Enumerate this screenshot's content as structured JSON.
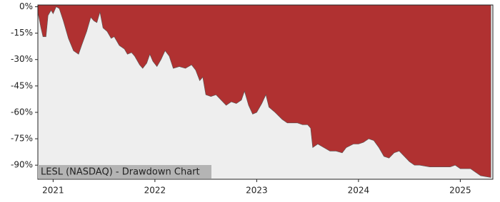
{
  "chart_data": {
    "type": "area",
    "title": "LESL (NASDAQ) - Drawdown Chart",
    "color": "#b03131",
    "x": [
      2020.85,
      2020.88,
      2020.9,
      2020.93,
      2020.95,
      2020.98,
      2021.0,
      2021.03,
      2021.06,
      2021.1,
      2021.15,
      2021.2,
      2021.25,
      2021.28,
      2021.33,
      2021.37,
      2021.4,
      2021.43,
      2021.46,
      2021.49,
      2021.53,
      2021.57,
      2021.6,
      2021.65,
      2021.7,
      2021.73,
      2021.77,
      2021.8,
      2021.85,
      2021.88,
      2021.92,
      2021.95,
      2021.98,
      2022.02,
      2022.06,
      2022.1,
      2022.14,
      2022.18,
      2022.24,
      2022.3,
      2022.36,
      2022.4,
      2022.44,
      2022.47,
      2022.5,
      2022.55,
      2022.6,
      2022.65,
      2022.7,
      2022.75,
      2022.8,
      2022.85,
      2022.88,
      2022.92,
      2022.96,
      2023.0,
      2023.05,
      2023.09,
      2023.12,
      2023.18,
      2023.25,
      2023.3,
      2023.4,
      2023.45,
      2023.5,
      2023.53,
      2023.55,
      2023.6,
      2023.66,
      2023.72,
      2023.78,
      2023.84,
      2023.88,
      2023.95,
      2024.0,
      2024.05,
      2024.1,
      2024.15,
      2024.2,
      2024.25,
      2024.3,
      2024.35,
      2024.4,
      2024.45,
      2024.5,
      2024.55,
      2024.6,
      2024.7,
      2024.8,
      2024.9,
      2024.95,
      2025.0,
      2025.1,
      2025.15,
      2025.2,
      2025.3
    ],
    "values": [
      -3,
      -12,
      -17,
      -17,
      -5,
      -2,
      -4,
      0,
      -1,
      -8,
      -18,
      -25,
      -27,
      -22,
      -14,
      -6,
      -8,
      -9,
      -3,
      -12,
      -14,
      -18,
      -17,
      -22,
      -24,
      -27,
      -26,
      -28,
      -33,
      -35,
      -32,
      -27,
      -31,
      -34,
      -30,
      -25,
      -28,
      -35,
      -34,
      -35,
      -33,
      -36,
      -42,
      -40,
      -50,
      -51,
      -50,
      -53,
      -56,
      -54,
      -55,
      -53,
      -48,
      -56,
      -61,
      -60,
      -55,
      -50,
      -57,
      -60,
      -64,
      -66,
      -66,
      -67,
      -67,
      -69,
      -80,
      -78,
      -80,
      -82,
      -82,
      -83,
      -80,
      -78,
      -78,
      -77,
      -75,
      -76,
      -80,
      -85,
      -86,
      -83,
      -82,
      -85,
      -88,
      -90,
      -90,
      -91,
      -91,
      -91,
      -90,
      -92,
      -92,
      -94,
      -96,
      -97
    ],
    "xlim": [
      2020.85,
      2025.32
    ],
    "xticks": [
      2021,
      2022,
      2023,
      2024,
      2025
    ],
    "ylim": [
      -98,
      1
    ],
    "yticks": [
      {
        "value": 0,
        "label": "0%"
      },
      {
        "value": -15,
        "label": "-15%"
      },
      {
        "value": -30,
        "label": "-30%"
      },
      {
        "value": -45,
        "label": "-45%"
      },
      {
        "value": -60,
        "label": "-60%"
      },
      {
        "value": -75,
        "label": "-75%"
      },
      {
        "value": -90,
        "label": "-90%"
      }
    ]
  }
}
